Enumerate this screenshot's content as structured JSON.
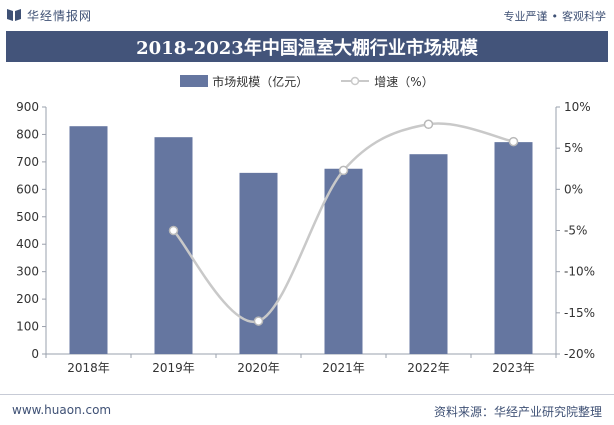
{
  "header": {
    "brand": "华经情报网",
    "motto_left": "专业严谨",
    "motto_sep": "•",
    "motto_right": "客观科学"
  },
  "footer": {
    "website": "www.huaon.com",
    "source": "资料来源：华经产业研究院整理"
  },
  "colors": {
    "bar": "#6576a0",
    "line": "#c9c9c9",
    "title_band": "#43547a"
  },
  "chart_data": {
    "type": "bar",
    "title": "2018-2023年中国温室大棚行业市场规模",
    "categories": [
      "2018年",
      "2019年",
      "2020年",
      "2021年",
      "2022年",
      "2023年"
    ],
    "series": [
      {
        "name": "市场规模（亿元）",
        "type": "bar",
        "axis": "left",
        "values": [
          830,
          790,
          660,
          675,
          728,
          772
        ]
      },
      {
        "name": "增速（%）",
        "type": "line",
        "axis": "right",
        "values": [
          null,
          -5,
          -16,
          2.3,
          7.9,
          5.8
        ]
      }
    ],
    "y_left": {
      "ylim": [
        0,
        900
      ],
      "ticks": [
        0,
        100,
        200,
        300,
        400,
        500,
        600,
        700,
        800,
        900
      ]
    },
    "y_right": {
      "ylim": [
        -20,
        10
      ],
      "ticks": [
        -20,
        -15,
        -10,
        -5,
        0,
        5,
        10
      ],
      "tick_labels": [
        "-20%",
        "-15%",
        "-10%",
        "-5%",
        "0%",
        "5%",
        "10%"
      ]
    },
    "legend_position": "top-center",
    "grid": false
  }
}
